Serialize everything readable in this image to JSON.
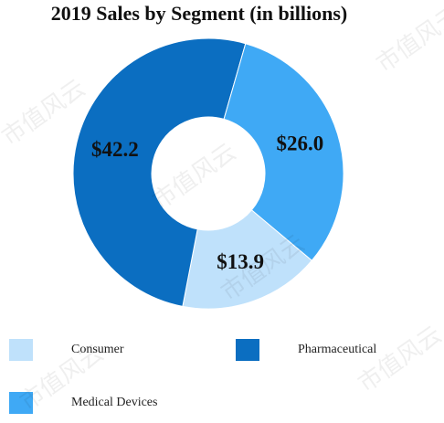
{
  "chart_data": {
    "type": "donut",
    "title": "2019 Sales by Segment (in billions)",
    "categories": [
      "Consumer",
      "Pharmaceutical",
      "Medical Devices"
    ],
    "values": [
      13.9,
      42.2,
      26.0
    ],
    "value_labels": [
      "$13.9",
      "$42.2",
      "$26.0"
    ],
    "colors": [
      "#bfe1fb",
      "#0b6ec1",
      "#3fa9f5"
    ],
    "legend": "bottom"
  },
  "watermark": "市值风云"
}
